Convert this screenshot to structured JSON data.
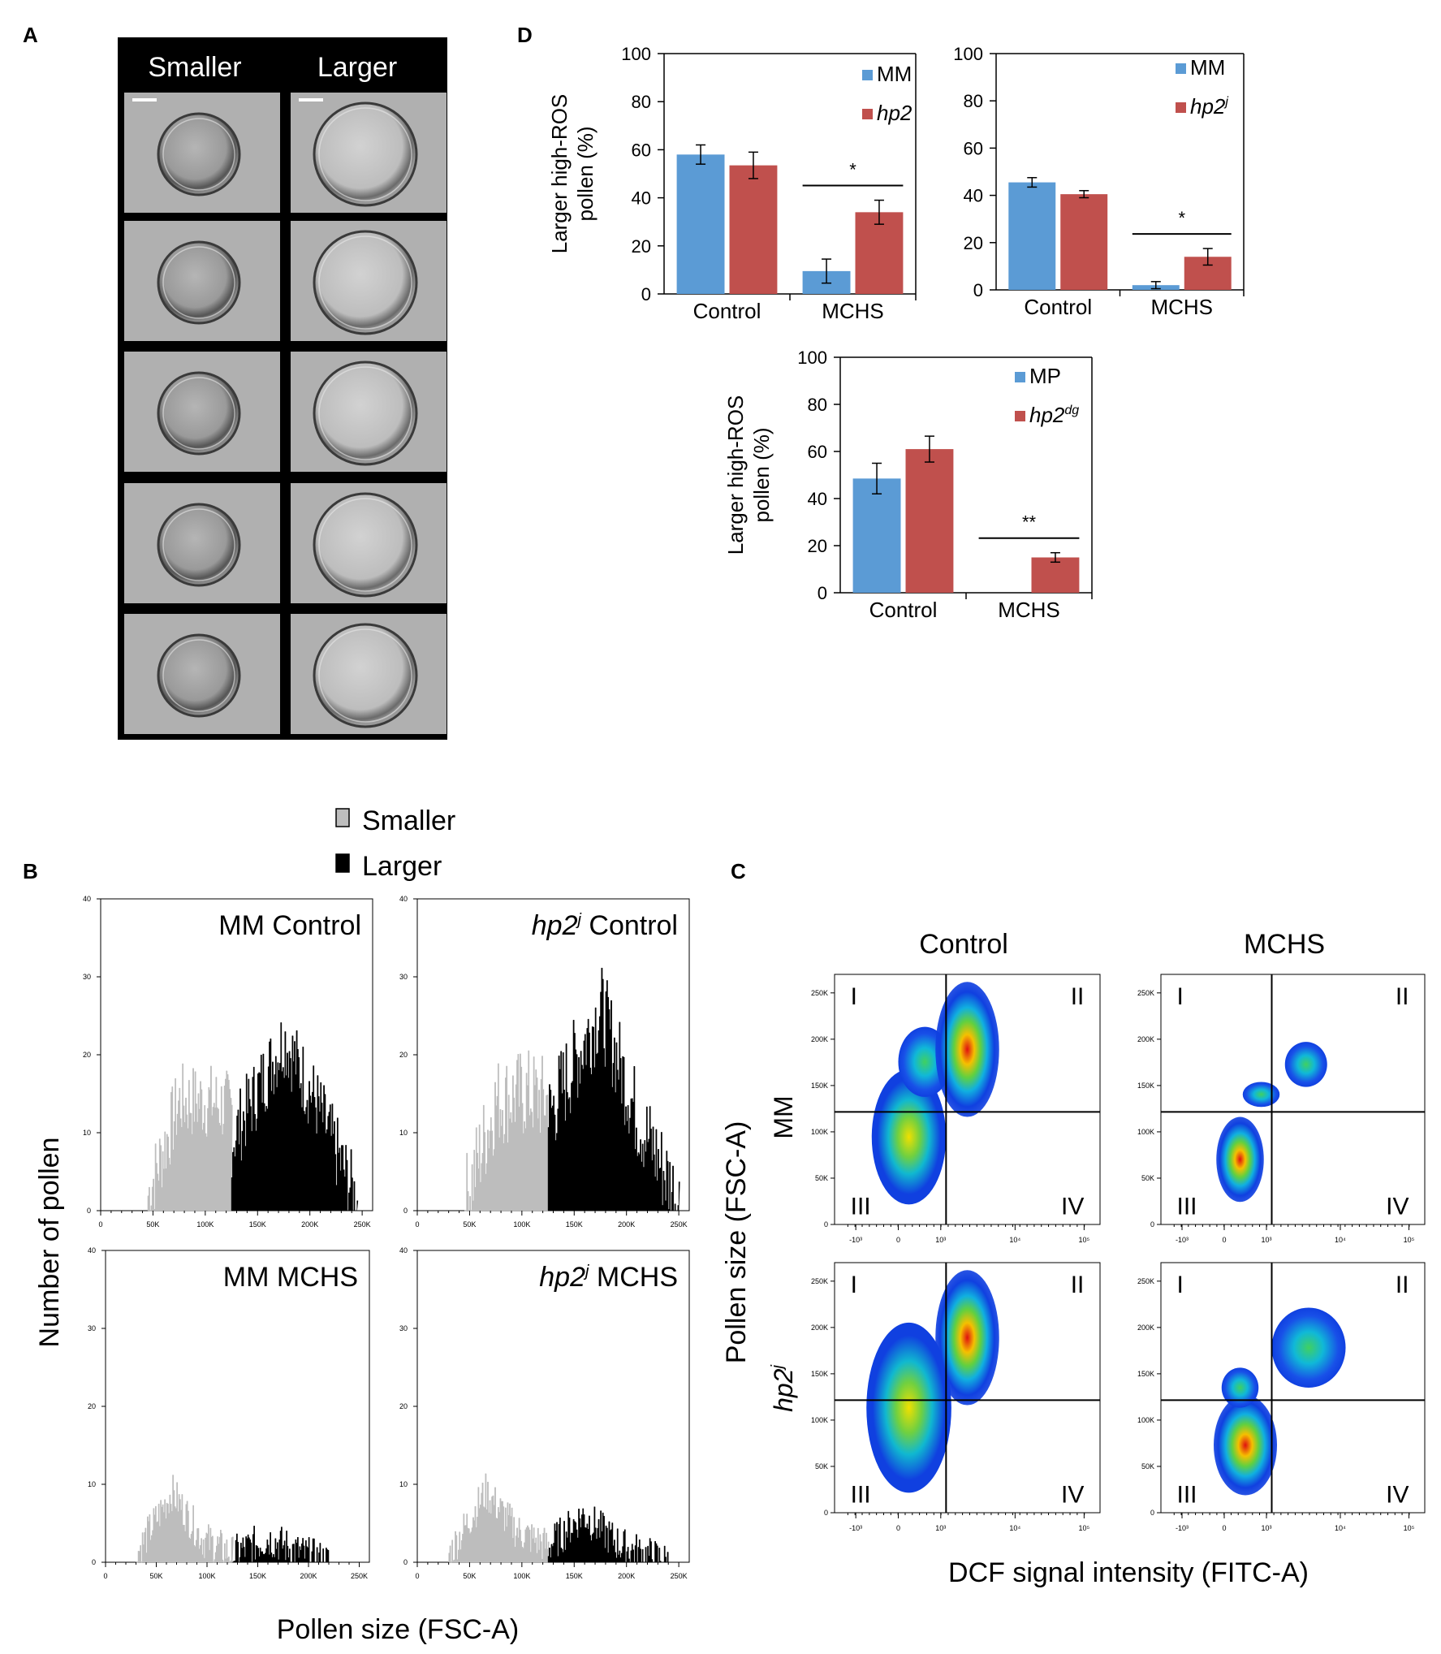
{
  "panel_labels": {
    "a": "A",
    "b": "B",
    "c": "C",
    "d": "D"
  },
  "panel_a": {
    "headers": [
      "Smaller",
      "Larger"
    ],
    "rows": 5,
    "has_scale_bar": true
  },
  "panel_b": {
    "legend": [
      {
        "label": "Smaller",
        "color": "#bdbdbd"
      },
      {
        "label": "Larger",
        "color": "#000000"
      }
    ],
    "xlabel": "Pollen size (FSC-A)",
    "ylabel": "Number of pollen",
    "xticks": [
      "0",
      "50K",
      "100K",
      "150K",
      "200K",
      "250K"
    ],
    "yticks": [
      "0",
      "10",
      "20",
      "30",
      "40"
    ],
    "plots": [
      {
        "title_italic": "",
        "title_sup": "",
        "title": "MM Control"
      },
      {
        "title_italic": "hp2",
        "title_sup": "j",
        "title": " Control"
      },
      {
        "title_italic": "",
        "title_sup": "",
        "title": "MM MCHS"
      },
      {
        "title_italic": "hp2",
        "title_sup": "j",
        "title": " MCHS"
      }
    ]
  },
  "panel_c": {
    "col_titles": [
      "Control",
      "MCHS"
    ],
    "row_titles": [
      {
        "italic": "",
        "sup": "",
        "text": "MM"
      },
      {
        "italic": "hp2",
        "sup": "j",
        "text": ""
      }
    ],
    "xlabel": "DCF signal intensity (FITC-A)",
    "ylabel": "Pollen size (FSC-A)",
    "quadrants": [
      "I",
      "II",
      "III",
      "IV"
    ],
    "yticks": [
      "0",
      "50K",
      "100K",
      "150K",
      "200K",
      "250K"
    ],
    "xticks": [
      "-10³",
      "0",
      "10³",
      "10⁴",
      "10⁵"
    ]
  },
  "chart_data": [
    {
      "type": "bar",
      "title": "",
      "categories": [
        "Control",
        "MCHS"
      ],
      "ylabel": "Larger high-ROS pollen (%)",
      "ylim": [
        0,
        100
      ],
      "yticks": [
        "0",
        "20",
        "40",
        "60",
        "80",
        "100"
      ],
      "series": [
        {
          "name": "MM",
          "name_sup": "",
          "italic": false,
          "color": "#5b9bd5",
          "values": [
            58,
            9.5
          ],
          "errors": [
            4,
            5
          ]
        },
        {
          "name": "hp2",
          "name_sup": "",
          "italic": true,
          "color": "#c0504d",
          "values": [
            53.5,
            34
          ],
          "errors": [
            5.5,
            5
          ]
        }
      ],
      "annotations": [
        {
          "category": "MCHS",
          "text": "*"
        }
      ]
    },
    {
      "type": "bar",
      "title": "",
      "categories": [
        "Control",
        "MCHS"
      ],
      "ylabel": "",
      "ylim": [
        0,
        100
      ],
      "yticks": [
        "0",
        "20",
        "40",
        "60",
        "80",
        "100"
      ],
      "series": [
        {
          "name": "MM",
          "name_sup": "",
          "italic": false,
          "color": "#5b9bd5",
          "values": [
            45.5,
            2
          ],
          "errors": [
            2,
            1.5
          ]
        },
        {
          "name": "hp2",
          "name_sup": "j",
          "italic": true,
          "color": "#c0504d",
          "values": [
            40.5,
            14
          ],
          "errors": [
            1.5,
            3.5
          ]
        }
      ],
      "annotations": [
        {
          "category": "MCHS",
          "text": "*"
        }
      ]
    },
    {
      "type": "bar",
      "title": "",
      "categories": [
        "Control",
        "MCHS"
      ],
      "ylabel": "Larger high-ROS pollen (%)",
      "ylim": [
        0,
        100
      ],
      "yticks": [
        "0",
        "20",
        "40",
        "60",
        "80",
        "100"
      ],
      "series": [
        {
          "name": "MP",
          "name_sup": "",
          "italic": false,
          "color": "#5b9bd5",
          "values": [
            48.5,
            0
          ],
          "errors": [
            6.5,
            0
          ]
        },
        {
          "name": "hp2",
          "name_sup": "dg",
          "italic": true,
          "color": "#c0504d",
          "values": [
            61,
            15
          ],
          "errors": [
            5.5,
            2
          ]
        }
      ],
      "annotations": [
        {
          "category": "MCHS",
          "text": "**"
        }
      ]
    }
  ]
}
